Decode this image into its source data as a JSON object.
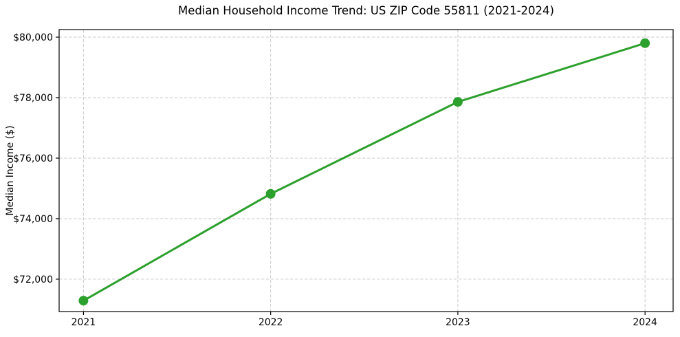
{
  "chart_data": {
    "type": "line",
    "title": "Median Household Income Trend: US ZIP Code 55811 (2021-2024)",
    "xlabel": "",
    "ylabel": "Median Income ($)",
    "x": [
      2021,
      2022,
      2023,
      2024
    ],
    "series": [
      {
        "name": "Median household income",
        "values": [
          71290,
          74820,
          77860,
          79800
        ],
        "color": "#2ca02c",
        "marker": "circle",
        "marker_size": 7,
        "line_width": 3
      }
    ],
    "xticks": [
      2021,
      2022,
      2023,
      2024
    ],
    "xtick_labels": [
      "2021",
      "2022",
      "2023",
      "2024"
    ],
    "yticks": [
      72000,
      74000,
      76000,
      78000,
      80000
    ],
    "ytick_labels": [
      "$72,000",
      "$74,000",
      "$76,000",
      "$78,000",
      "$80,000"
    ],
    "xlim": [
      2020.87,
      2024.15
    ],
    "ylim": [
      70930,
      80250
    ],
    "grid": true,
    "grid_style": "dashed",
    "grid_color": "#cbcbcb",
    "axis_color": "#000000",
    "text_color": "#000000",
    "legend": "none",
    "background": "#ffffff"
  }
}
